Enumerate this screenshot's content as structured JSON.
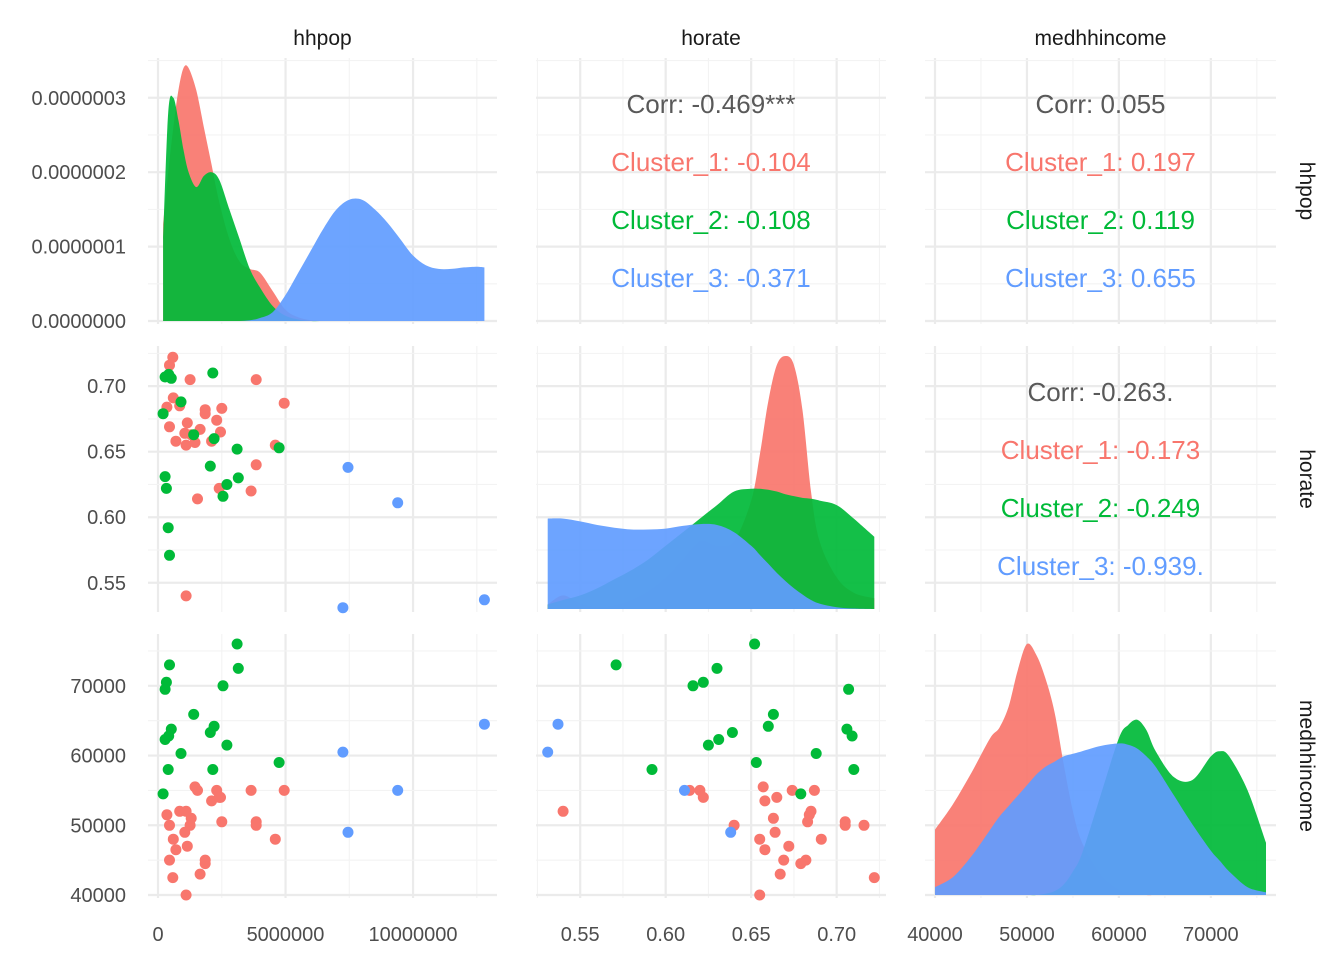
{
  "chart_data": {
    "type": "scatter",
    "title": "",
    "variables": [
      "hhpop",
      "horate",
      "medhhincome"
    ],
    "cluster_names": [
      "Cluster_1",
      "Cluster_2",
      "Cluster_3"
    ],
    "colors": {
      "Cluster_1": "#F8766D",
      "Cluster_2": "#00BA38",
      "Cluster_3": "#619CFF"
    },
    "corr_color": "#595959",
    "axes": {
      "hhpop": {
        "range": [
          0,
          12900000
        ],
        "ticks": [
          0,
          5000000,
          10000000
        ],
        "tick_labels": [
          "0",
          "5000000",
          "10000000"
        ]
      },
      "horate": {
        "range": [
          0.53,
          0.723
        ],
        "ticks": [
          0.55,
          0.6,
          0.65,
          0.7
        ],
        "tick_labels": [
          "0.55",
          "0.60",
          "0.65",
          "0.70"
        ]
      },
      "medhhincome": {
        "range": [
          40000,
          76000
        ],
        "ticks": [
          40000,
          50000,
          60000,
          70000
        ],
        "tick_labels": [
          "40000",
          "50000",
          "60000",
          "70000"
        ]
      },
      "density_hhpop": {
        "range": [
          0,
          3.4e-07
        ],
        "ticks": [
          0,
          1e-07,
          2e-07,
          3e-07
        ],
        "tick_labels": [
          "0.0000000",
          "0.0000001",
          "0.0000002",
          "0.0000003"
        ]
      }
    },
    "correlations": [
      {
        "row": "hhpop",
        "col": "horate",
        "lines": [
          "Corr: -0.469***",
          "Cluster_1: -0.104",
          "Cluster_2: -0.108",
          "Cluster_3: -0.371"
        ]
      },
      {
        "row": "hhpop",
        "col": "medhhincome",
        "lines": [
          "Corr: 0.055",
          "Cluster_1: 0.197",
          "Cluster_2: 0.119",
          "Cluster_3: 0.655"
        ]
      },
      {
        "row": "horate",
        "col": "medhhincome",
        "lines": [
          "Corr: -0.263.",
          "Cluster_1: -0.173",
          "Cluster_2: -0.249",
          "Cluster_3: -0.939."
        ]
      }
    ],
    "points": [
      {
        "cluster": "Cluster_1",
        "hhpop": 580000,
        "horate": 0.722,
        "medhhincome": 42500
      },
      {
        "cluster": "Cluster_1",
        "hhpop": 450000,
        "horate": 0.716,
        "medhhincome": 50000
      },
      {
        "cluster": "Cluster_1",
        "hhpop": 1260000,
        "horate": 0.705,
        "medhhincome": 50000
      },
      {
        "cluster": "Cluster_1",
        "hhpop": 3850000,
        "horate": 0.705,
        "medhhincome": 50500
      },
      {
        "cluster": "Cluster_1",
        "hhpop": 600000,
        "horate": 0.691,
        "medhhincome": 48000
      },
      {
        "cluster": "Cluster_1",
        "hhpop": 850000,
        "horate": 0.685,
        "medhhincome": 52000
      },
      {
        "cluster": "Cluster_1",
        "hhpop": 4950000,
        "horate": 0.687,
        "medhhincome": 55000
      },
      {
        "cluster": "Cluster_1",
        "hhpop": 1850000,
        "horate": 0.682,
        "medhhincome": 45000
      },
      {
        "cluster": "Cluster_1",
        "hhpop": 1850000,
        "horate": 0.679,
        "medhhincome": 44500
      },
      {
        "cluster": "Cluster_1",
        "hhpop": 2500000,
        "horate": 0.683,
        "medhhincome": 50500
      },
      {
        "cluster": "Cluster_1",
        "hhpop": 350000,
        "horate": 0.684,
        "medhhincome": 51500
      },
      {
        "cluster": "Cluster_1",
        "hhpop": 1150000,
        "horate": 0.672,
        "medhhincome": 47000
      },
      {
        "cluster": "Cluster_1",
        "hhpop": 2300000,
        "horate": 0.674,
        "medhhincome": 55000
      },
      {
        "cluster": "Cluster_1",
        "hhpop": 450000,
        "horate": 0.669,
        "medhhincome": 45000
      },
      {
        "cluster": "Cluster_1",
        "hhpop": 1650000,
        "horate": 0.667,
        "medhhincome": 43000
      },
      {
        "cluster": "Cluster_1",
        "hhpop": 1050000,
        "horate": 0.664,
        "medhhincome": 49000
      },
      {
        "cluster": "Cluster_1",
        "hhpop": 1300000,
        "horate": 0.663,
        "medhhincome": 51000
      },
      {
        "cluster": "Cluster_1",
        "hhpop": 2450000,
        "horate": 0.665,
        "medhhincome": 54000
      },
      {
        "cluster": "Cluster_1",
        "hhpop": 700000,
        "horate": 0.658,
        "medhhincome": 46500
      },
      {
        "cluster": "Cluster_1",
        "hhpop": 1100000,
        "horate": 0.655,
        "medhhincome": 40000
      },
      {
        "cluster": "Cluster_1",
        "hhpop": 1450000,
        "horate": 0.657,
        "medhhincome": 55500
      },
      {
        "cluster": "Cluster_1",
        "hhpop": 2100000,
        "horate": 0.658,
        "medhhincome": 53500
      },
      {
        "cluster": "Cluster_1",
        "hhpop": 4600000,
        "horate": 0.655,
        "medhhincome": 48000
      },
      {
        "cluster": "Cluster_1",
        "hhpop": 3850000,
        "horate": 0.64,
        "medhhincome": 50000
      },
      {
        "cluster": "Cluster_1",
        "hhpop": 2400000,
        "horate": 0.622,
        "medhhincome": 54000
      },
      {
        "cluster": "Cluster_1",
        "hhpop": 3650000,
        "horate": 0.62,
        "medhhincome": 55000
      },
      {
        "cluster": "Cluster_1",
        "hhpop": 1550000,
        "horate": 0.614,
        "medhhincome": 55000
      },
      {
        "cluster": "Cluster_1",
        "hhpop": 1100000,
        "horate": 0.54,
        "medhhincome": 52000
      },
      {
        "cluster": "Cluster_2",
        "hhpop": 280000,
        "horate": 0.707,
        "medhhincome": 69500
      },
      {
        "cluster": "Cluster_2",
        "hhpop": 420000,
        "horate": 0.709,
        "medhhincome": 62800
      },
      {
        "cluster": "Cluster_2",
        "hhpop": 520000,
        "horate": 0.706,
        "medhhincome": 63800
      },
      {
        "cluster": "Cluster_2",
        "hhpop": 2150000,
        "horate": 0.71,
        "medhhincome": 58000
      },
      {
        "cluster": "Cluster_2",
        "hhpop": 900000,
        "horate": 0.688,
        "medhhincome": 60300
      },
      {
        "cluster": "Cluster_2",
        "hhpop": 200000,
        "horate": 0.679,
        "medhhincome": 54500
      },
      {
        "cluster": "Cluster_2",
        "hhpop": 1400000,
        "horate": 0.663,
        "medhhincome": 65900
      },
      {
        "cluster": "Cluster_2",
        "hhpop": 2200000,
        "horate": 0.66,
        "medhhincome": 64200
      },
      {
        "cluster": "Cluster_2",
        "hhpop": 3100000,
        "horate": 0.652,
        "medhhincome": 76000
      },
      {
        "cluster": "Cluster_2",
        "hhpop": 4750000,
        "horate": 0.653,
        "medhhincome": 59000
      },
      {
        "cluster": "Cluster_2",
        "hhpop": 2050000,
        "horate": 0.639,
        "medhhincome": 63300
      },
      {
        "cluster": "Cluster_2",
        "hhpop": 280000,
        "horate": 0.631,
        "medhhincome": 62300
      },
      {
        "cluster": "Cluster_2",
        "hhpop": 3150000,
        "horate": 0.63,
        "medhhincome": 72500
      },
      {
        "cluster": "Cluster_2",
        "hhpop": 2700000,
        "horate": 0.625,
        "medhhincome": 61500
      },
      {
        "cluster": "Cluster_2",
        "hhpop": 330000,
        "horate": 0.622,
        "medhhincome": 70500
      },
      {
        "cluster": "Cluster_2",
        "hhpop": 2550000,
        "horate": 0.616,
        "medhhincome": 70000
      },
      {
        "cluster": "Cluster_2",
        "hhpop": 400000,
        "horate": 0.592,
        "medhhincome": 58000
      },
      {
        "cluster": "Cluster_2",
        "hhpop": 450000,
        "horate": 0.571,
        "medhhincome": 73000
      },
      {
        "cluster": "Cluster_3",
        "hhpop": 7450000,
        "horate": 0.638,
        "medhhincome": 49000
      },
      {
        "cluster": "Cluster_3",
        "hhpop": 9400000,
        "horate": 0.611,
        "medhhincome": 55000
      },
      {
        "cluster": "Cluster_3",
        "hhpop": 7250000,
        "horate": 0.531,
        "medhhincome": 60500
      },
      {
        "cluster": "Cluster_3",
        "hhpop": 12800000,
        "horate": 0.537,
        "medhhincome": 64500
      }
    ],
    "densities": {
      "hhpop": {
        "x": [
          200000,
          400000,
          600000,
          800000,
          1000000,
          1200000,
          1500000,
          1800000,
          2100000,
          2400000,
          2800000,
          3200000,
          3600000,
          4000000,
          4500000,
          5000000,
          5500000,
          6000000,
          6500000,
          7000000,
          7500000,
          8000000,
          8500000,
          9000000,
          9500000,
          10000000,
          10500000,
          11000000,
          11500000,
          12000000,
          12500000,
          12800000
        ],
        "series": [
          {
            "name": "Cluster_1",
            "values": [
              1.3e-07,
              2e-07,
              2.6e-07,
              3.1e-07,
              3.4e-07,
              3.4e-07,
              3.1e-07,
              2.6e-07,
              2.1e-07,
              1.6e-07,
              1.1e-07,
              8e-08,
              7e-08,
              6.5e-08,
              4e-08,
              1.5e-08,
              5e-09,
              1e-09,
              0,
              0,
              0,
              0,
              0,
              0,
              0,
              0,
              0,
              0,
              0,
              0,
              0,
              0
            ]
          },
          {
            "name": "Cluster_2",
            "values": [
              1.1e-07,
              2.8e-07,
              3e-07,
              2.7e-07,
              2.3e-07,
              2e-07,
              1.8e-07,
              1.95e-07,
              2e-07,
              1.9e-07,
              1.5e-07,
              1.1e-07,
              7e-08,
              4.5e-08,
              2e-08,
              7e-09,
              2e-09,
              0,
              0,
              0,
              0,
              0,
              0,
              0,
              0,
              0,
              0,
              0,
              0,
              0,
              0,
              0
            ]
          },
          {
            "name": "Cluster_3",
            "values": [
              0,
              0,
              0,
              0,
              0,
              0,
              0,
              0,
              0,
              0,
              0,
              0,
              1e-09,
              4e-09,
              1.2e-08,
              3.5e-08,
              6.5e-08,
              9.5e-08,
              1.25e-07,
              1.5e-07,
              1.63e-07,
              1.63e-07,
              1.5e-07,
              1.32e-07,
              1.1e-07,
              8.8e-08,
              7.5e-08,
              7e-08,
              7e-08,
              7.2e-08,
              7.3e-08,
              7.2e-08
            ]
          }
        ]
      },
      "horate": {
        "x": [
          0.531,
          0.54,
          0.55,
          0.56,
          0.57,
          0.58,
          0.59,
          0.6,
          0.61,
          0.62,
          0.63,
          0.64,
          0.65,
          0.655,
          0.66,
          0.665,
          0.67,
          0.675,
          0.68,
          0.685,
          0.69,
          0.7,
          0.71,
          0.722
        ],
        "series": [
          {
            "name": "Cluster_1",
            "values": [
              0.5,
              1.5,
              0.6,
              0.2,
              0.4,
              1.0,
              2.0,
              3.5,
              5.5,
              7.5,
              7.0,
              7.5,
              12.0,
              17.0,
              23.0,
              27.0,
              28.0,
              27.0,
              22.0,
              13.0,
              7.5,
              3.5,
              1.8,
              1.2
            ]
          },
          {
            "name": "Cluster_2",
            "values": [
              0.5,
              1.0,
              1.5,
              2.3,
              3.3,
              4.3,
              5.5,
              7.0,
              8.5,
              10.0,
              11.5,
              13.0,
              13.3,
              13.3,
              13.2,
              13.0,
              12.7,
              12.5,
              12.3,
              12.2,
              12.0,
              11.5,
              10.0,
              8.0
            ]
          },
          {
            "name": "Cluster_3",
            "values": [
              10.0,
              10.0,
              9.7,
              9.3,
              9.0,
              8.8,
              8.8,
              8.9,
              9.2,
              9.4,
              9.3,
              8.5,
              7.0,
              6.0,
              5.0,
              4.0,
              3.1,
              2.3,
              1.6,
              1.0,
              0.6,
              0.2,
              0.05,
              0
            ]
          }
        ]
      },
      "medhhincome": {
        "x": [
          40000,
          42000,
          44000,
          46000,
          47000,
          48000,
          49000,
          50000,
          51000,
          52000,
          53000,
          54000,
          55000,
          56000,
          58000,
          60000,
          61000,
          62000,
          63000,
          64000,
          66000,
          68000,
          70000,
          71000,
          72000,
          74000,
          76000
        ],
        "series": [
          {
            "name": "Cluster_1",
            "values": [
              2.5e-05,
              3.5e-05,
              4.7e-05,
              6e-05,
              6.4e-05,
              7.2e-05,
              8.6e-05,
              9.6e-05,
              9.2e-05,
              8.3e-05,
              7e-05,
              5e-05,
              3.2e-05,
              2e-05,
              8e-06,
              2e-06,
              1e-06,
              5e-07,
              0,
              0,
              0,
              0,
              0,
              0,
              0,
              0,
              0
            ]
          },
          {
            "name": "Cluster_2",
            "values": [
              0,
              0,
              0,
              0,
              0,
              0,
              0,
              0,
              0,
              5e-07,
              1.5e-06,
              4e-06,
              9e-06,
              1.6e-05,
              3.8e-05,
              6e-05,
              6.5e-05,
              6.7e-05,
              6.3e-05,
              5.5e-05,
              4.5e-05,
              4.4e-05,
              5.3e-05,
              5.5e-05,
              5.3e-05,
              4e-05,
              2e-05
            ]
          },
          {
            "name": "Cluster_3",
            "values": [
              3e-06,
              7e-06,
              1.5e-05,
              2.5e-05,
              3e-05,
              3.4e-05,
              3.8e-05,
              4.2e-05,
              4.6e-05,
              4.9e-05,
              5.1e-05,
              5.3e-05,
              5.4e-05,
              5.5e-05,
              5.7e-05,
              5.8e-05,
              5.75e-05,
              5.6e-05,
              5.3e-05,
              4.9e-05,
              3.8e-05,
              2.7e-05,
              1.7e-05,
              1.3e-05,
              9e-06,
              3e-06,
              1e-06
            ]
          }
        ]
      }
    }
  }
}
